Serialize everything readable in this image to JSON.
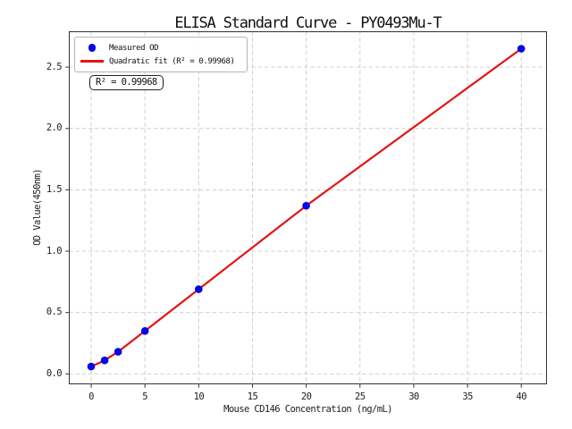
{
  "chart_data": {
    "type": "scatter",
    "title": "ELISA Standard Curve - PY0493Mu-T",
    "xlabel": "Mouse CD146 Concentration (ng/mL)",
    "ylabel": "OD Value(450nm)",
    "xlim": [
      -2.08,
      42.39
    ],
    "ylim": [
      -0.085,
      2.792
    ],
    "grid": true,
    "legend_position": "upper left",
    "series": [
      {
        "name": "Measured OD",
        "type": "scatter",
        "color": "#0505e8",
        "x": [
          0,
          1.25,
          2.5,
          5,
          10,
          20,
          40
        ],
        "y": [
          0.06,
          0.11,
          0.18,
          0.35,
          0.69,
          1.37,
          2.65
        ]
      },
      {
        "name": "Quadratic fit (R² = 0.99968)",
        "type": "line",
        "color": "#e31414"
      }
    ],
    "xticks": {
      "values": [
        0,
        5,
        10,
        15,
        20,
        25,
        30,
        35,
        40
      ],
      "labels": [
        "0",
        "5",
        "10",
        "15",
        "20",
        "25",
        "30",
        "35",
        "40"
      ]
    },
    "yticks": {
      "values": [
        0,
        0.5,
        1.0,
        1.5,
        2.0,
        2.5
      ],
      "labels": [
        "0.0",
        "0.5",
        "1.0",
        "1.5",
        "2.0",
        "2.5"
      ]
    },
    "annotation": "R² = 0.99968"
  },
  "legend": {
    "items": [
      {
        "label": "Measured OD",
        "marker": "dot-icon"
      },
      {
        "label": "Quadratic fit (R² = 0.99968)",
        "marker": "line-icon"
      }
    ]
  },
  "colors": {
    "grid": "#cbcbcb",
    "spine": "#333333",
    "point": "#0505e8",
    "fit_line": "#e31414",
    "background": "#ffffff"
  }
}
